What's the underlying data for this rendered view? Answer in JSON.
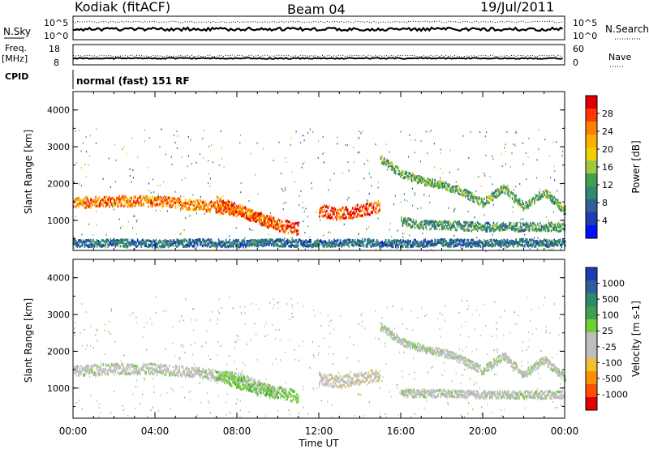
{
  "header": {
    "station": "Kodiak (fitACF)",
    "beam": "Beam 04",
    "date": "19/Jul/2011"
  },
  "sky_panel": {
    "left_label": "N.Sky",
    "right_label": "N.Search",
    "left_ticks": [
      "10^5",
      "10^0"
    ],
    "right_ticks": [
      "10^5",
      "10^0"
    ]
  },
  "freq_panel": {
    "left_label_top": "Freq.",
    "left_label_unit": "[MHz]",
    "right_label": "Nave",
    "left_ticks": [
      "18",
      "8"
    ],
    "right_ticks": [
      "60",
      "0"
    ]
  },
  "cpid": {
    "label": "CPID",
    "value": "normal (fast) 151 RF"
  },
  "axes": {
    "ylabel": "Slant Range [km]",
    "xlabel": "Time UT",
    "yticks": [
      "4000",
      "3000",
      "2000",
      "1000"
    ],
    "xticks": [
      "00:00",
      "04:00",
      "08:00",
      "12:00",
      "16:00",
      "20:00",
      "00:00"
    ]
  },
  "power_scale": {
    "label": "Power [dB]",
    "ticks": [
      "28",
      "24",
      "20",
      "16",
      "12",
      "8",
      "4"
    ],
    "colors": [
      "#e00000",
      "#ff3a00",
      "#ff8000",
      "#ffb000",
      "#f0d000",
      "#a0c840",
      "#40a050",
      "#2e8a6e",
      "#2e5f9a",
      "#1e3cb0",
      "#0010ff"
    ]
  },
  "velocity_scale": {
    "label": "Velocity [m s-1]",
    "ticks": [
      "1000",
      "500",
      "100",
      "25",
      "-25",
      "-100",
      "-500",
      "-1000"
    ],
    "colors": [
      "#1e3cb0",
      "#2e5f9a",
      "#2e8a6e",
      "#40a050",
      "#6ed030",
      "#bebebe",
      "#bebebe",
      "#f0c030",
      "#ff9000",
      "#ff5000",
      "#e00000"
    ]
  },
  "chart_data": [
    {
      "type": "heatmap",
      "title": "Power",
      "xlabel": "Time UT",
      "ylabel": "Slant Range [km]",
      "x_range_hours": [
        0,
        24
      ],
      "ylim": [
        180,
        4500
      ],
      "colorbar": {
        "label": "Power [dB]",
        "range": [
          0,
          30
        ]
      },
      "bands": [
        {
          "t": [
            0,
            2,
            4,
            6,
            8,
            9,
            10
          ],
          "range_km": [
            1500,
            1550,
            1550,
            1450,
            1300,
            1100,
            900
          ],
          "width_km": 220,
          "power_db": 24
        },
        {
          "t": [
            7,
            8,
            9,
            10,
            11
          ],
          "range_km": [
            1500,
            1300,
            1100,
            900,
            800
          ],
          "width_km": 260,
          "power_db": 26
        },
        {
          "t": [
            12,
            13,
            14,
            15
          ],
          "range_km": [
            1300,
            1200,
            1300,
            1400
          ],
          "width_km": 260,
          "power_db": 27
        },
        {
          "t": [
            16,
            17,
            18,
            20,
            22,
            24
          ],
          "range_km": [
            1000,
            900,
            900,
            850,
            850,
            850
          ],
          "width_km": 180,
          "power_db": 10
        },
        {
          "t": [
            15,
            16,
            17,
            18,
            19,
            20,
            21,
            22,
            23,
            24
          ],
          "range_km": [
            2700,
            2300,
            2100,
            2000,
            1800,
            1500,
            1900,
            1400,
            1800,
            1300
          ],
          "width_km": 160,
          "power_db": 12
        },
        {
          "t": [
            0,
            2,
            4,
            6,
            8,
            10,
            12,
            14,
            16,
            18,
            20,
            22,
            24
          ],
          "range_km": [
            400,
            420,
            400,
            420,
            400,
            420,
            400,
            420,
            400,
            420,
            400,
            420,
            400
          ],
          "width_km": 150,
          "power_db": 7
        }
      ]
    },
    {
      "type": "heatmap",
      "title": "Velocity",
      "xlabel": "Time UT",
      "ylabel": "Slant Range [km]",
      "x_range_hours": [
        0,
        24
      ],
      "ylim": [
        180,
        4500
      ],
      "colorbar": {
        "label": "Velocity [m s-1]",
        "range": [
          -1000,
          1000
        ]
      },
      "bands": [
        {
          "t": [
            0,
            2,
            4,
            6,
            8,
            9,
            10
          ],
          "range_km": [
            1500,
            1550,
            1550,
            1450,
            1300,
            1100,
            900
          ],
          "width_km": 220,
          "velocity": 0
        },
        {
          "t": [
            7,
            8,
            9,
            10,
            11
          ],
          "range_km": [
            1400,
            1200,
            1000,
            900,
            800
          ],
          "width_km": 260,
          "velocity": 200
        },
        {
          "t": [
            12,
            13,
            14,
            15
          ],
          "range_km": [
            1300,
            1200,
            1300,
            1400
          ],
          "width_km": 260,
          "velocity": -200
        },
        {
          "t": [
            15,
            16,
            17,
            18,
            19,
            20,
            21,
            22,
            23,
            24
          ],
          "range_km": [
            2700,
            2300,
            2100,
            2000,
            1800,
            1500,
            1900,
            1400,
            1800,
            1300
          ],
          "width_km": 160,
          "velocity": 0
        },
        {
          "t": [
            16,
            18,
            20,
            22,
            24
          ],
          "range_km": [
            900,
            880,
            850,
            850,
            850
          ],
          "width_km": 160,
          "velocity": 0
        }
      ]
    }
  ]
}
